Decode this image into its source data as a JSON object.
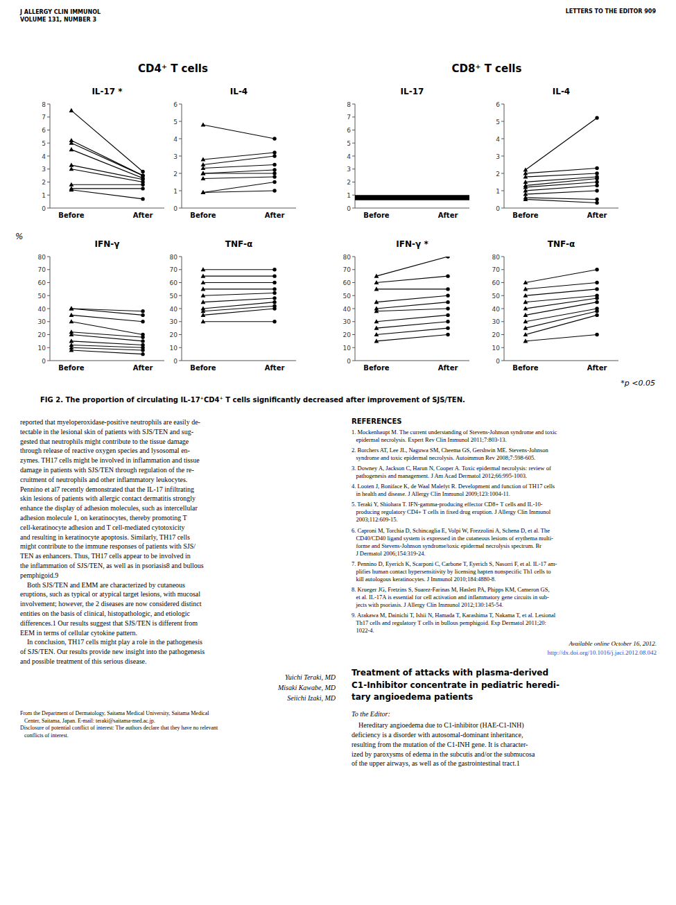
{
  "chart_data": [
    {
      "type": "paired",
      "title": "IL-17 *",
      "categories": [
        "Before",
        "After"
      ],
      "color": "black",
      "ylim": [
        0,
        8
      ],
      "yticks": [
        0,
        1,
        2,
        3,
        4,
        5,
        6,
        7,
        8
      ],
      "series": [
        {
          "values": [
            7.5,
            2.8
          ]
        },
        {
          "values": [
            5.2,
            2.5
          ]
        },
        {
          "values": [
            5.0,
            2.5
          ]
        },
        {
          "values": [
            4.5,
            2.3
          ]
        },
        {
          "values": [
            3.3,
            2.2
          ]
        },
        {
          "values": [
            3.0,
            2.0
          ]
        },
        {
          "values": [
            1.8,
            1.8
          ]
        },
        {
          "values": [
            1.5,
            1.5
          ]
        },
        {
          "values": [
            1.4,
            0.7
          ]
        }
      ]
    },
    {
      "type": "paired",
      "title": "IL-4",
      "categories": [
        "Before",
        "After"
      ],
      "color": "black",
      "ylim": [
        0,
        6
      ],
      "yticks": [
        0,
        1,
        2,
        3,
        4,
        5,
        6
      ],
      "series": [
        {
          "values": [
            4.8,
            4.0
          ]
        },
        {
          "values": [
            2.8,
            3.2
          ]
        },
        {
          "values": [
            2.5,
            3.0
          ]
        },
        {
          "values": [
            2.3,
            2.5
          ]
        },
        {
          "values": [
            2.0,
            2.2
          ]
        },
        {
          "values": [
            2.0,
            2.0
          ]
        },
        {
          "values": [
            1.7,
            1.8
          ]
        },
        {
          "values": [
            0.9,
            1.5
          ]
        },
        {
          "values": [
            0.9,
            1.0
          ]
        }
      ]
    },
    {
      "type": "band",
      "title": "IL-17",
      "categories": [
        "Before",
        "After"
      ],
      "color": "black",
      "ylim": [
        0,
        8
      ],
      "yticks": [
        0,
        1,
        2,
        3,
        4,
        5,
        6,
        7,
        8
      ],
      "band": [
        0.6,
        1.0
      ]
    },
    {
      "type": "paired",
      "title": "IL-4",
      "categories": [
        "Before",
        "After"
      ],
      "color": "black",
      "ylim": [
        0,
        6
      ],
      "yticks": [
        0,
        1,
        2,
        3,
        4,
        5,
        6
      ],
      "series": [
        {
          "values": [
            2.2,
            5.2
          ]
        },
        {
          "values": [
            2.0,
            2.3
          ]
        },
        {
          "values": [
            1.8,
            2.0
          ]
        },
        {
          "values": [
            1.5,
            1.8
          ]
        },
        {
          "values": [
            1.3,
            1.7
          ]
        },
        {
          "values": [
            1.2,
            1.5
          ]
        },
        {
          "values": [
            1.0,
            1.3
          ]
        },
        {
          "values": [
            0.8,
            1.0
          ]
        },
        {
          "values": [
            0.6,
            0.5
          ]
        },
        {
          "values": [
            0.5,
            0.3
          ]
        }
      ]
    },
    {
      "type": "paired",
      "title": "IFN-γ",
      "categories": [
        "Before",
        "After"
      ],
      "color": "black",
      "ylim": [
        0,
        80
      ],
      "yticks": [
        0,
        10,
        20,
        30,
        40,
        50,
        60,
        70,
        80
      ],
      "series": [
        {
          "values": [
            40,
            38
          ]
        },
        {
          "values": [
            40,
            35
          ]
        },
        {
          "values": [
            35,
            30
          ]
        },
        {
          "values": [
            30,
            20
          ]
        },
        {
          "values": [
            22,
            18
          ]
        },
        {
          "values": [
            20,
            15
          ]
        },
        {
          "values": [
            15,
            12
          ]
        },
        {
          "values": [
            12,
            10
          ]
        },
        {
          "values": [
            10,
            8
          ]
        },
        {
          "values": [
            8,
            5
          ]
        }
      ]
    },
    {
      "type": "paired",
      "title": "TNF-α",
      "categories": [
        "Before",
        "After"
      ],
      "color": "black",
      "ylim": [
        0,
        80
      ],
      "yticks": [
        0,
        10,
        20,
        30,
        40,
        50,
        60,
        70,
        80
      ],
      "series": [
        {
          "values": [
            70,
            70
          ]
        },
        {
          "values": [
            65,
            65
          ]
        },
        {
          "values": [
            60,
            60
          ]
        },
        {
          "values": [
            55,
            55
          ]
        },
        {
          "values": [
            50,
            52
          ]
        },
        {
          "values": [
            45,
            48
          ]
        },
        {
          "values": [
            40,
            45
          ]
        },
        {
          "values": [
            38,
            42
          ]
        },
        {
          "values": [
            35,
            40
          ]
        },
        {
          "values": [
            30,
            30
          ]
        }
      ]
    },
    {
      "type": "paired",
      "title": "IFN-γ *",
      "categories": [
        "Before",
        "After"
      ],
      "color": "black",
      "ylim": [
        0,
        80
      ],
      "yticks": [
        0,
        10,
        20,
        30,
        40,
        50,
        60,
        70,
        80
      ],
      "series": [
        {
          "values": [
            65,
            80
          ]
        },
        {
          "values": [
            60,
            65
          ]
        },
        {
          "values": [
            55,
            55
          ]
        },
        {
          "values": [
            45,
            50
          ]
        },
        {
          "values": [
            40,
            45
          ]
        },
        {
          "values": [
            38,
            40
          ]
        },
        {
          "values": [
            30,
            35
          ]
        },
        {
          "values": [
            25,
            30
          ]
        },
        {
          "values": [
            20,
            25
          ]
        },
        {
          "values": [
            15,
            20
          ]
        }
      ]
    },
    {
      "type": "paired",
      "title": "TNF-α",
      "categories": [
        "Before",
        "After"
      ],
      "color": "black",
      "ylim": [
        0,
        80
      ],
      "yticks": [
        0,
        10,
        20,
        30,
        40,
        50,
        60,
        70,
        80
      ],
      "series": [
        {
          "values": [
            60,
            70
          ]
        },
        {
          "values": [
            55,
            60
          ]
        },
        {
          "values": [
            50,
            55
          ]
        },
        {
          "values": [
            45,
            50
          ]
        },
        {
          "values": [
            40,
            48
          ]
        },
        {
          "values": [
            35,
            45
          ]
        },
        {
          "values": [
            30,
            40
          ]
        },
        {
          "values": [
            25,
            38
          ]
        },
        {
          "values": [
            20,
            35
          ]
        },
        {
          "values": [
            15,
            20
          ]
        }
      ]
    }
  ],
  "page": {
    "header_left": "J ALLERGY CLIN IMMUNOL\nVOLUME 131, NUMBER 3",
    "header_right": "LETTERS TO THE EDITOR 909",
    "group_titles": [
      "CD4⁺ T cells",
      "CD8⁺ T cells"
    ],
    "ylabel": "%",
    "sig_note": "*p <0.05",
    "fig_caption": "FIG 2.  The proportion of circulating IL-17⁺CD4⁺ T cells significantly decreased after improvement of SJS/TEN.",
    "main_text_left": "reported that myeloperoxidase-positive neutrophils are easily de-\ntectable in the lesional skin of patients with SJS/TEN and sug-\ngested that neutrophils might contribute to the tissue damage\nthrough release of reactive oxygen species and lysosomal en-\nzymes. TH17 cells might be involved in inflammation and tissue\ndamage in patients with SJS/TEN through regulation of the re-\ncruitment of neutrophils and other inflammatory leukocytes.\nPennino et al7 recently demonstrated that the IL-17 infiltrating\nskin lesions of patients with allergic contact dermatitis strongly\nenhance the display of adhesion molecules, such as intercellular\nadhesion molecule 1, on keratinocytes, thereby promoting T\ncell-keratinocyte adhesion and T cell-mediated cytotoxicity\nand resulting in keratinocyte apoptosis. Similarly, TH17 cells\nmight contribute to the immune responses of patients with SJS/\nTEN as enhancers. Thus, TH17 cells appear to be involved in\nthe inflammation of SJS/TEN, as well as in psoriasis8 and bullous\npemphigoid.9\n    Both SJS/TEN and EMM are characterized by cutaneous\neruptions, such as typical or atypical target lesions, with mucosal\ninvolvement; however, the 2 diseases are now considered distinct\nentities on the basis of clinical, histopathologic, and etiologic\ndifferences.1 Our results suggest that SJS/TEN is different from\nEEM in terms of cellular cytokine pattern.\n    In conclusion, TH17 cells might play a role in the pathogenesis\nof SJS/TEN. Our results provide new insight into the pathogenesis\nand possible treatment of this serious disease.",
    "signatures": "Yuichi Teraki, MD\nMisaki Kawabe, MD\nSeiichi Izaki, MD",
    "affiliation": "From the Department of Dermatology, Saitama Medical University, Saitama Medical\n   Center, Saitama, Japan. E-mail: teraki@saitama-med.ac.jp.\nDisclosure of potential conflict of interest: The authors declare that they have no relevant\n   conflicts of interest.",
    "references_title": "REFERENCES",
    "references": [
      "1. Mockenhaupt M. The current understanding of Stevens-Johnson syndrome and toxic\n   epidermal necrolysis. Expert Rev Clin Immunol 2011;7:803-13.",
      "2. Borchers AT, Lee JL, Naguwa SM, Cheema GS, Gershwin ME. Stevens-Johnson\n   syndrome and toxic epidermal necrolysis. Autoimmun Rev 2008;7:598-605.",
      "3. Downey A, Jackson C, Harun N, Cooper A. Toxic epidermal necrolysis: review of\n   pathogenesis and management. J Am Acad Dermatol 2012;66:995-1003.",
      "4. Looten J, Boniface K, de Waal Malefyt R. Development and function of TH17 cells\n   in health and disease. J Allergy Clin Immunol 2009;123:1004-11.",
      "5. Teraki Y, Shiohara T. IFN-gamma-producing effector CD8+ T cells and IL-10-\n   producing regulatory CD4+ T cells in fixed drug eruption. J Allergy Clin Immunol\n   2003;112:609-15.",
      "6. Caproni M, Torchia D, Schincaglia E, Volpi W, Frezzolini A, Schena D, et al. The\n   CD40/CD40 ligand system is expressed in the cutaneous lesions of erythema multi-\n   forme and Stevens-Johnson syndrome/toxic epidermal necrolysis spectrum. Br\n   J Dermatol 2006;154:319-24.",
      "7. Pennino D, Eyerich K, Scarponi C, Carbone T, Eyerich S, Nasorri F, et al. IL-17 am-\n   plifies human contact hypersensitivity by licensing hapten nonspecific Th1 cells to\n   kill autologous keratinocytes. J Immunol 2010;184:4880-8.",
      "8. Krueger JG, Fretzins S, Suarez-Farinas M, Haslett PA, Phipps KM, Cameron GS,\n   et al. IL-17A is essential for cell activation and inflammatory gene circuits in sub-\n   jects with psoriasis. J Allergy Clin Immunol 2012;130:145-54.",
      "9. Arakawa M, Dainichi T, Ishii N, Hamada T, Karashima T, Nakama T, et al. Lesional\n   Th17 cells and regulatory T cells in bullous pemphigoid. Exp Dermatol 2011;20:\n   1022-4."
    ],
    "available_online": "Available online October 16, 2012.",
    "doi": "http://dx.doi.org/10.1016/j.jaci.2012.08.042",
    "new_article_title": "Treatment of attacks with plasma-derived\nC1-Inhibitor concentrate in pediatric heredi-\ntary angioedema patients",
    "to_editor": "To the Editor:",
    "new_article_text": "    Hereditary angioedema due to C1-inhibitor (HAE-C1-INH)\ndeficiency is a disorder with autosomal-dominant inheritance,\nresulting from the mutation of the C1-INH gene. It is character-\nized by paroxysms of edema in the subcutis and/or the submucosa\nof the upper airways, as well as of the gastrointestinal tract.1"
  }
}
